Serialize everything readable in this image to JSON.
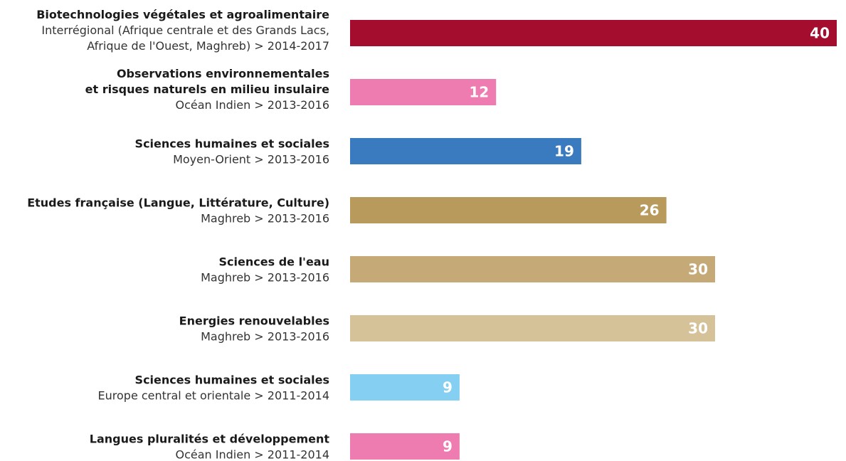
{
  "chart_data": {
    "type": "bar",
    "orientation": "horizontal",
    "xlim": [
      0,
      40
    ],
    "series": [
      {
        "values": [
          40,
          12,
          19,
          26,
          30,
          30,
          9,
          9
        ]
      }
    ],
    "bars": [
      {
        "title_lines": [
          "Biotechnologies végétales et agroalimentaire"
        ],
        "sub_lines": [
          "Interrégional (Afrique centrale et des Grands Lacs,",
          "Afrique de l'Ouest, Maghreb) > 2014-2017"
        ],
        "value": 40,
        "value_label": "40",
        "color": "#a50d2e"
      },
      {
        "title_lines": [
          "Observations environnementales",
          "et risques naturels en milieu insulaire"
        ],
        "sub_lines": [
          "Océan Indien > 2013-2016"
        ],
        "value": 12,
        "value_label": "12",
        "color": "#ef7cb0"
      },
      {
        "title_lines": [
          "Sciences humaines et sociales"
        ],
        "sub_lines": [
          "Moyen-Orient > 2013-2016"
        ],
        "value": 19,
        "value_label": "19",
        "color": "#3a7bbf"
      },
      {
        "title_lines": [
          "Etudes française (Langue, Littérature, Culture)"
        ],
        "sub_lines": [
          "Maghreb > 2013-2016"
        ],
        "value": 26,
        "value_label": "26",
        "color": "#b89a5c"
      },
      {
        "title_lines": [
          "Sciences de l'eau"
        ],
        "sub_lines": [
          "Maghreb > 2013-2016"
        ],
        "value": 30,
        "value_label": "30",
        "color": "#c5aa78"
      },
      {
        "title_lines": [
          "Energies renouvelables"
        ],
        "sub_lines": [
          "Maghreb > 2013-2016"
        ],
        "value": 30,
        "value_label": "30",
        "color": "#d6c298"
      },
      {
        "title_lines": [
          "Sciences humaines et sociales"
        ],
        "sub_lines": [
          "Europe central et orientale  > 2011-2014"
        ],
        "value": 9,
        "value_label": "9",
        "color": "#85cff3"
      },
      {
        "title_lines": [
          "Langues pluralités et développement"
        ],
        "sub_lines": [
          "Océan Indien > 2011-2014"
        ],
        "value": 9,
        "value_label": "9",
        "color": "#ef7cb0"
      }
    ]
  }
}
